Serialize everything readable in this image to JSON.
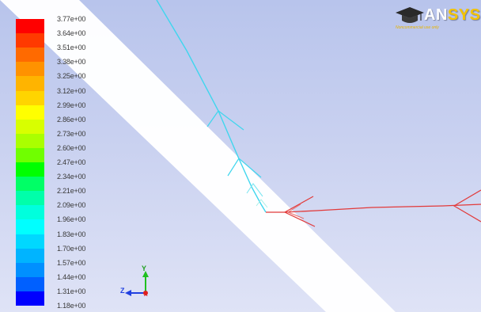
{
  "colorbar": {
    "labels": [
      "3.77e+00",
      "3.64e+00",
      "3.51e+00",
      "3.38e+00",
      "3.25e+00",
      "3.12e+00",
      "2.99e+00",
      "2.86e+00",
      "2.73e+00",
      "2.60e+00",
      "2.47e+00",
      "2.34e+00",
      "2.21e+00",
      "2.09e+00",
      "1.96e+00",
      "1.83e+00",
      "1.70e+00",
      "1.57e+00",
      "1.44e+00",
      "1.31e+00",
      "1.18e+00"
    ],
    "colors": [
      "#ff0000",
      "#ff3a00",
      "#ff6a00",
      "#ff9200",
      "#ffb400",
      "#ffd400",
      "#ffff00",
      "#d8ff00",
      "#aaff00",
      "#70ff00",
      "#00ff00",
      "#00ff66",
      "#00ffaa",
      "#00ffdd",
      "#00ffff",
      "#00d8ff",
      "#00b4ff",
      "#0090ff",
      "#0060ff",
      "#0000ff"
    ]
  },
  "logo": {
    "brand_prefix": "AN",
    "brand_suffix": "SYS",
    "tagline": "Noncommercial use only"
  },
  "axes": {
    "x_label": "Z",
    "y_label": "Y",
    "z_label": "X"
  },
  "colors": {
    "background_top": "#b8c4ec",
    "band": "#ffffff",
    "streamline_cyan": "#3fd6ee",
    "streamline_red": "#e23a3a"
  }
}
